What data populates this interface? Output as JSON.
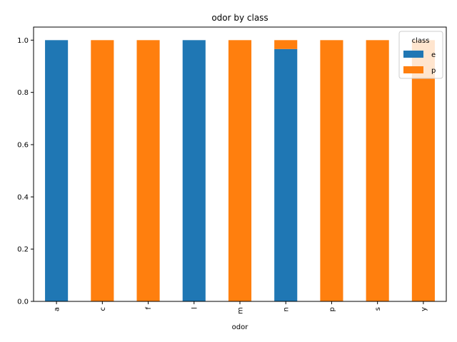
{
  "chart_data": {
    "type": "bar",
    "stacked": true,
    "title": "odor by class",
    "xlabel": "odor",
    "ylabel": "",
    "ylim": [
      0,
      1.05
    ],
    "yticks": [
      0.0,
      0.2,
      0.4,
      0.6,
      0.8,
      1.0
    ],
    "ytick_labels": [
      "0.0",
      "0.2",
      "0.4",
      "0.6",
      "0.8",
      "1.0"
    ],
    "grid": false,
    "categories": [
      "a",
      "c",
      "f",
      "l",
      "m",
      "n",
      "p",
      "s",
      "y"
    ],
    "series": [
      {
        "name": "e",
        "color": "#1f77b4",
        "values": [
          1.0,
          0.0,
          0.0,
          1.0,
          0.0,
          0.966,
          0.0,
          0.0,
          0.0
        ]
      },
      {
        "name": "p",
        "color": "#ff7f0e",
        "values": [
          0.0,
          1.0,
          1.0,
          0.0,
          1.0,
          0.034,
          1.0,
          1.0,
          1.0
        ]
      }
    ],
    "legend": {
      "title": "class",
      "placement": "top-right"
    }
  }
}
